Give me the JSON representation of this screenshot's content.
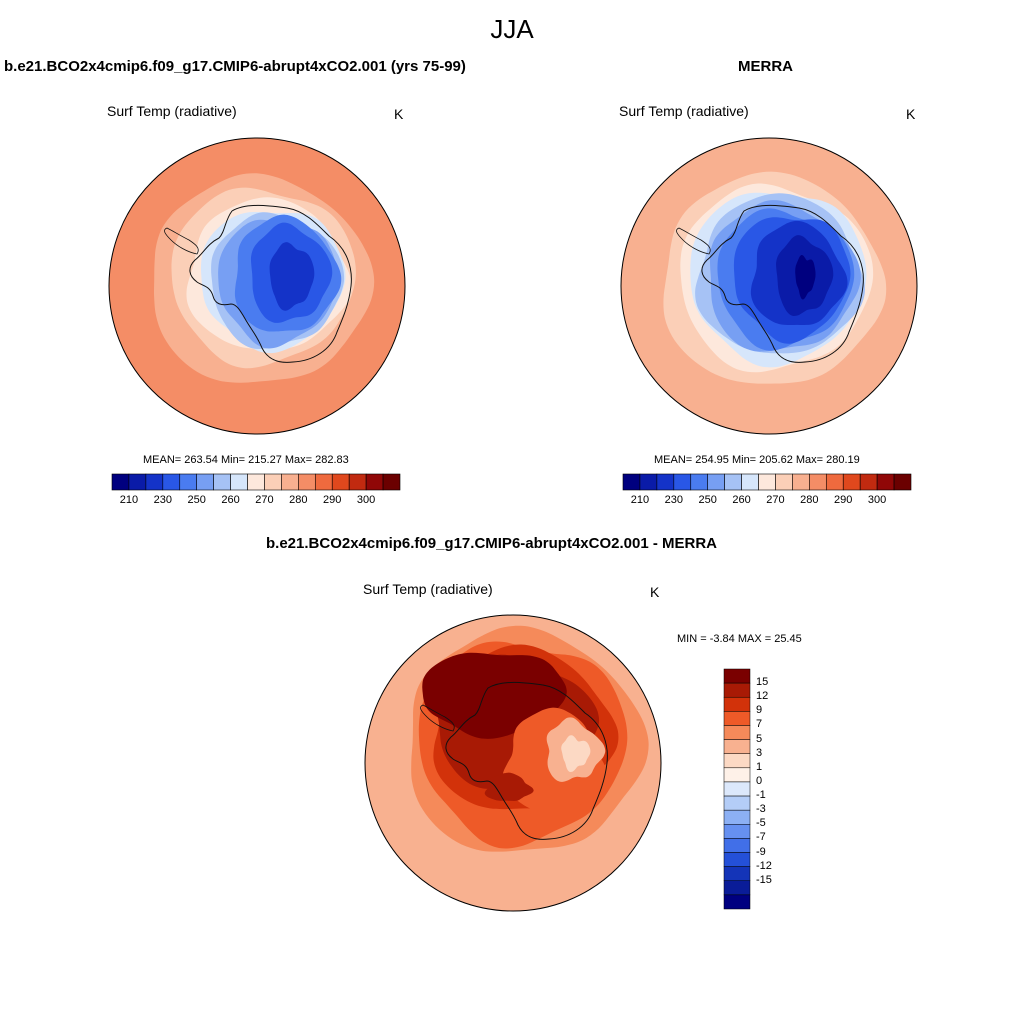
{
  "title": "JJA",
  "panels": [
    {
      "title": "b.e21.BCO2x4cmip6.f09_g17.CMIP6-abrupt4xCO2.001 (yrs 75-99)",
      "variable": "Surf Temp (radiative)",
      "units": "K",
      "stats": "MEAN= 263.54  Min= 215.27  Max= 282.83",
      "colorbar": {
        "colors": [
          "#00007f",
          "#0a1ba8",
          "#1433c8",
          "#2957e6",
          "#4a7cf0",
          "#779ff3",
          "#a6c2f5",
          "#d6e6fb",
          "#fde8dc",
          "#fbcfb7",
          "#f8b090",
          "#f48d66",
          "#ef6a3e",
          "#e0481d",
          "#c12a10",
          "#900707",
          "#6b0000"
        ],
        "ticks": [
          "210",
          "230",
          "250",
          "260",
          "270",
          "280",
          "290",
          "300"
        ]
      }
    },
    {
      "title": "MERRA",
      "variable": "Surf Temp (radiative)",
      "units": "K",
      "stats": "MEAN= 254.95  Min= 205.62  Max= 280.19",
      "colorbar": {
        "colors": [
          "#00007f",
          "#0a1ba8",
          "#1433c8",
          "#2957e6",
          "#4a7cf0",
          "#779ff3",
          "#a6c2f5",
          "#d6e6fb",
          "#fde8dc",
          "#fbcfb7",
          "#f8b090",
          "#f48d66",
          "#ef6a3e",
          "#e0481d",
          "#c12a10",
          "#900707",
          "#6b0000"
        ],
        "ticks": [
          "210",
          "230",
          "250",
          "260",
          "270",
          "280",
          "290",
          "300"
        ]
      }
    },
    {
      "title": "b.e21.BCO2x4cmip6.f09_g17.CMIP6-abrupt4xCO2.001 - MERRA",
      "variable": "Surf Temp (radiative)",
      "units": "K",
      "stats": "MIN =  -3.84 MAX =  25.45",
      "colorbar": {
        "colors": [
          "#7a0000",
          "#a81a05",
          "#d2320a",
          "#ee5a28",
          "#f58a5a",
          "#f8b190",
          "#fcd9c4",
          "#fef1e8",
          "#dce8fb",
          "#b4cdf7",
          "#8cb0f4",
          "#6690f0",
          "#416fe8",
          "#2450d8",
          "#1434b8",
          "#0a1c98",
          "#000080"
        ],
        "ticks": [
          "15",
          "12",
          "9",
          "7",
          "5",
          "3",
          "1",
          "0",
          "-1",
          "-3",
          "-5",
          "-7",
          "-9",
          "-12",
          "-15"
        ]
      }
    }
  ]
}
